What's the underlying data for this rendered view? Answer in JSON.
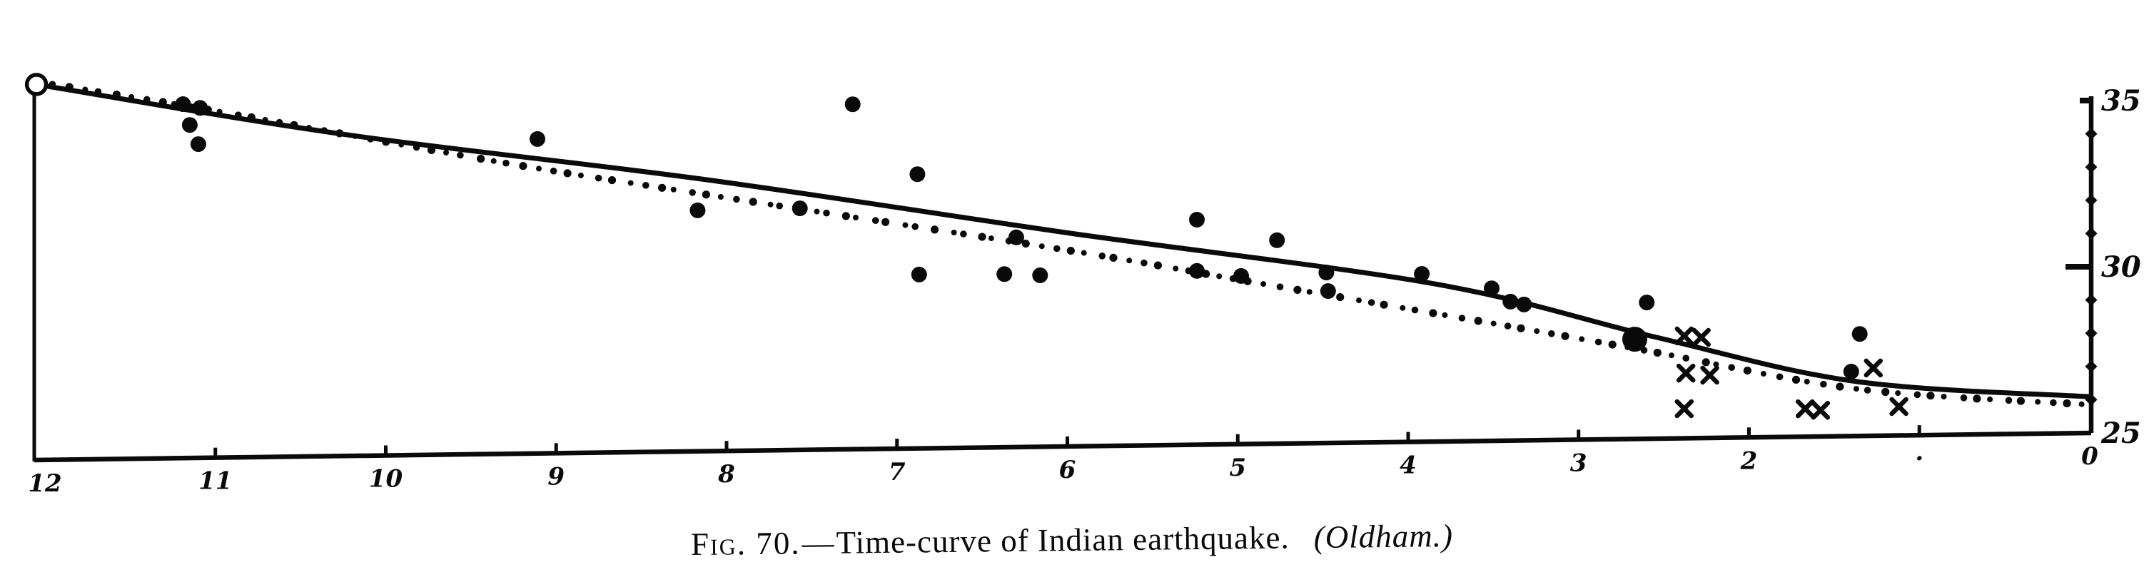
{
  "figure": {
    "caption": {
      "fig_label": "Fig. 70.",
      "separator": "—",
      "title": "Time-curve of Indian earthquake.",
      "attribution": "(Oldham.)"
    },
    "full_caption": "Fig. 70.—Time-curve of Indian earthquake. (Oldham.)"
  },
  "chart_data": {
    "type": "scatter",
    "title": "Fig. 70.—Time-curve of Indian earthquake. (Oldham.)",
    "xlabel": "",
    "ylabel": "",
    "grid": false,
    "legend": false,
    "x_axis": {
      "range": [
        12,
        0
      ],
      "reversed": true,
      "ticks": [
        {
          "value": 12,
          "label": "12"
        },
        {
          "value": 11,
          "label": "11"
        },
        {
          "value": 10,
          "label": "10"
        },
        {
          "value": 9,
          "label": "9"
        },
        {
          "value": 8,
          "label": "8"
        },
        {
          "value": 7,
          "label": "7"
        },
        {
          "value": 6,
          "label": "6"
        },
        {
          "value": 5,
          "label": "5"
        },
        {
          "value": 4,
          "label": "4"
        },
        {
          "value": 3,
          "label": "3"
        },
        {
          "value": 2,
          "label": "2"
        },
        {
          "value": 1,
          "label": "·"
        },
        {
          "value": 0,
          "label": "0"
        }
      ]
    },
    "y_axis": {
      "side": "right",
      "range": [
        25,
        35.5
      ],
      "ticks": [
        {
          "value": 35,
          "label": "35"
        },
        {
          "value": 30,
          "label": "30"
        },
        {
          "value": 25,
          "label": "25"
        }
      ],
      "minor_tick_values": [
        26,
        27,
        28,
        29,
        31,
        32,
        33,
        34
      ]
    },
    "ink_color": "#0a0a0a",
    "series": [
      {
        "name": "observed-arrival-dots",
        "marker": "filled-circle",
        "points": [
          [
            11.19,
            35.65
          ],
          [
            11.09,
            35.53
          ],
          [
            11.15,
            35.02
          ],
          [
            11.1,
            34.44
          ],
          [
            9.11,
            34.46
          ],
          [
            8.17,
            32.25
          ],
          [
            7.26,
            35.38
          ],
          [
            7.57,
            32.27
          ],
          [
            6.88,
            33.25
          ],
          [
            6.3,
            31.31
          ],
          [
            6.87,
            30.23
          ],
          [
            6.37,
            30.21
          ],
          [
            6.16,
            30.16
          ],
          [
            5.24,
            31.77
          ],
          [
            5.24,
            30.23
          ],
          [
            4.98,
            30.06
          ],
          [
            4.77,
            31.12
          ],
          [
            4.48,
            30.13
          ],
          [
            4.47,
            29.57
          ],
          [
            3.92,
            30.05
          ],
          [
            3.51,
            29.59
          ],
          [
            3.4,
            29.18
          ],
          [
            3.32,
            29.09
          ],
          [
            2.6,
            29.1
          ],
          [
            1.35,
            28.07
          ],
          [
            1.4,
            26.94
          ]
        ]
      },
      {
        "name": "large-emphasized-point",
        "marker": "filled-circle-large",
        "points": [
          [
            2.67,
            28.0
          ]
        ]
      },
      {
        "name": "cross-marks",
        "marker": "x",
        "points": [
          [
            2.38,
            28.08
          ],
          [
            2.28,
            28.03
          ],
          [
            2.37,
            26.96
          ],
          [
            2.23,
            26.89
          ],
          [
            2.38,
            25.89
          ],
          [
            1.67,
            25.84
          ],
          [
            1.58,
            25.79
          ],
          [
            1.27,
            27.04
          ],
          [
            1.12,
            25.87
          ]
        ]
      },
      {
        "name": "solid-time-curve",
        "type": "line",
        "style": "solid",
        "points": [
          [
            12.05,
            36.3
          ],
          [
            10.25,
            34.68
          ],
          [
            8.12,
            33.17
          ],
          [
            5.98,
            31.41
          ],
          [
            3.84,
            29.74
          ],
          [
            2.56,
            28.07
          ],
          [
            1.37,
            26.64
          ],
          [
            0.0,
            26.09
          ]
        ]
      },
      {
        "name": "dotted-time-curve",
        "type": "line",
        "style": "dotted",
        "points": [
          [
            12.05,
            36.38
          ],
          [
            11.01,
            35.44
          ],
          [
            9.33,
            33.78
          ],
          [
            8.12,
            32.72
          ],
          [
            6.02,
            30.92
          ],
          [
            4.85,
            29.81
          ],
          [
            3.47,
            28.5
          ],
          [
            2.59,
            27.64
          ],
          [
            1.37,
            26.42
          ],
          [
            0.03,
            25.86
          ]
        ]
      },
      {
        "name": "origin-open-circle",
        "marker": "open-circle",
        "points": [
          [
            12.05,
            36.3
          ]
        ]
      }
    ]
  }
}
